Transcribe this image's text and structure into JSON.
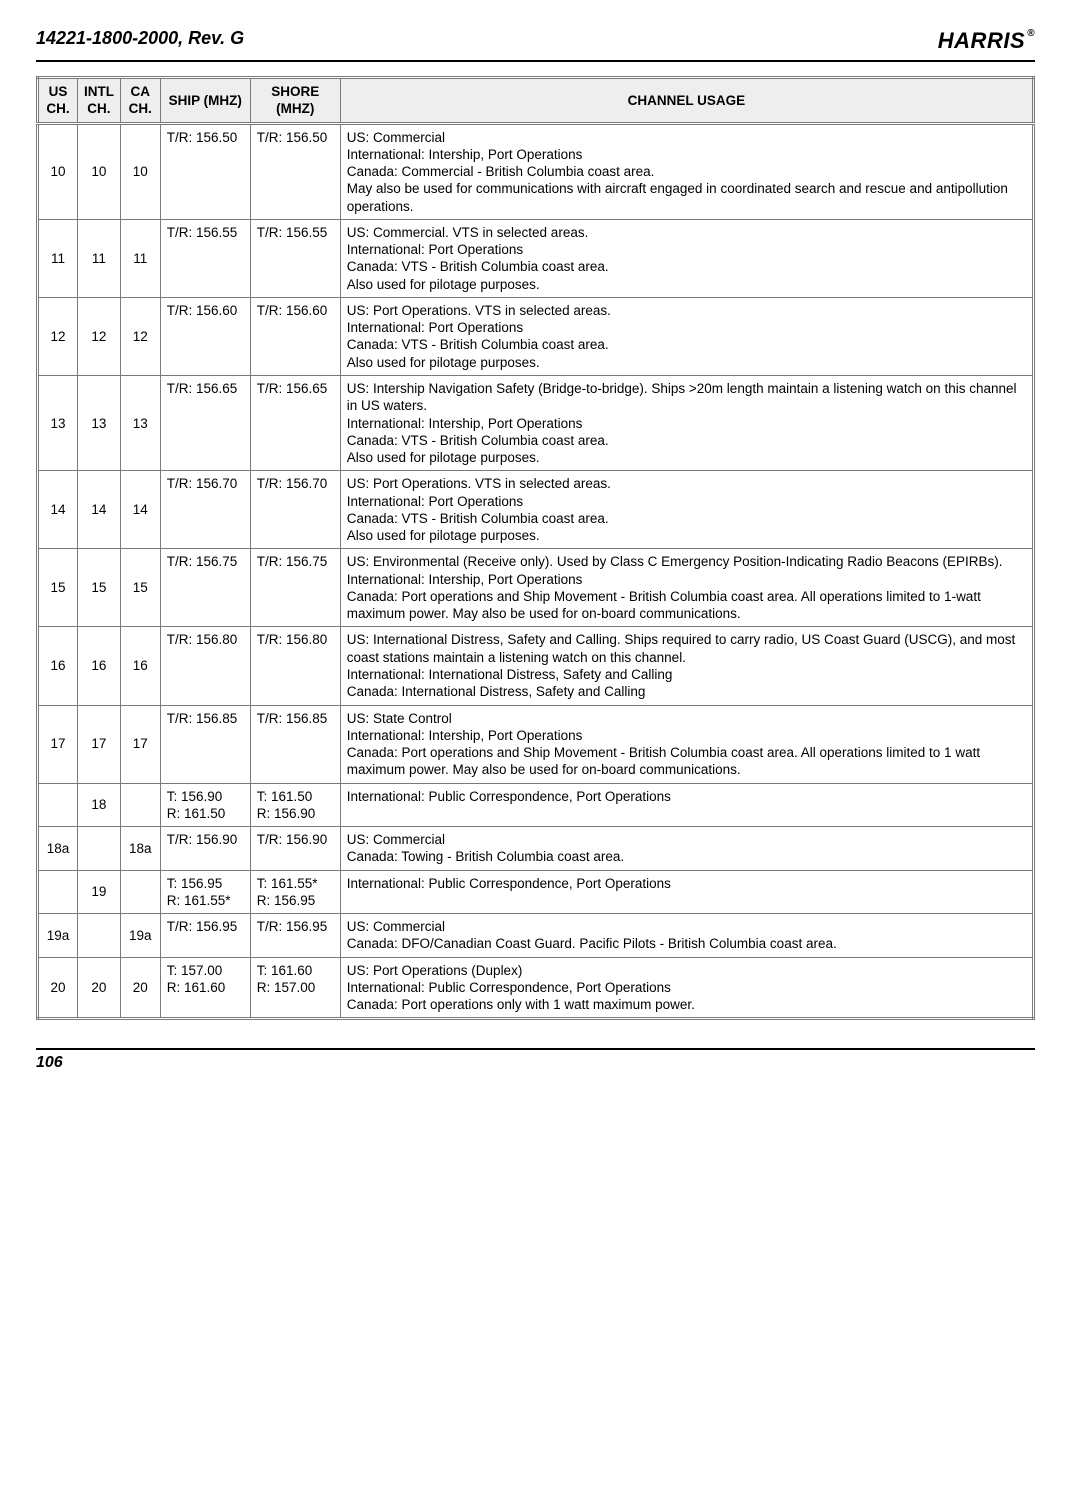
{
  "doc_id": "14221-1800-2000, Rev. G",
  "logo_text": "HARRIS",
  "page_number": "106",
  "table": {
    "headers": {
      "us": "US CH.",
      "intl": "INTL CH.",
      "ca": "CA CH.",
      "ship": "SHIP (MHZ)",
      "shore": "SHORE (MHZ)",
      "usage": "CHANNEL USAGE"
    },
    "rows": [
      {
        "us": "10",
        "intl": "10",
        "ca": "10",
        "ship": "T/R: 156.50",
        "shore": "T/R: 156.50",
        "usage": "US: Commercial\nInternational: Intership, Port Operations\nCanada: Commercial - British Columbia coast area.\nMay also be used for communications with aircraft engaged in coordinated search and rescue and antipollution operations."
      },
      {
        "us": "11",
        "intl": "11",
        "ca": "11",
        "ship": "T/R: 156.55",
        "shore": "T/R: 156.55",
        "usage": "US: Commercial. VTS in selected areas.\nInternational: Port Operations\nCanada: VTS - British Columbia coast area.\nAlso used for pilotage purposes."
      },
      {
        "us": "12",
        "intl": "12",
        "ca": "12",
        "ship": "T/R: 156.60",
        "shore": "T/R: 156.60",
        "usage": "US: Port Operations. VTS in selected areas.\nInternational: Port Operations\nCanada: VTS - British Columbia coast area.\nAlso used for pilotage purposes."
      },
      {
        "us": "13",
        "intl": "13",
        "ca": "13",
        "ship": "T/R: 156.65",
        "shore": "T/R: 156.65",
        "usage": "US: Intership Navigation Safety (Bridge-to-bridge). Ships >20m length maintain a listening watch on this channel in US waters.\nInternational: Intership, Port Operations\nCanada: VTS - British Columbia coast area.\nAlso used for pilotage purposes."
      },
      {
        "us": "14",
        "intl": "14",
        "ca": "14",
        "ship": "T/R: 156.70",
        "shore": "T/R: 156.70",
        "usage": "US: Port Operations. VTS in selected areas.\nInternational: Port Operations\nCanada: VTS - British Columbia coast area.\nAlso used for pilotage purposes."
      },
      {
        "us": "15",
        "intl": "15",
        "ca": "15",
        "ship": "T/R: 156.75",
        "shore": "T/R: 156.75",
        "usage": "US: Environmental (Receive only). Used by Class C Emergency Position-Indicating Radio Beacons (EPIRBs).\nInternational: Intership, Port Operations\nCanada: Port operations and Ship Movement - British Columbia coast area. All operations limited to 1-watt maximum power. May also be used for on-board communications."
      },
      {
        "us": "16",
        "intl": "16",
        "ca": "16",
        "ship": "T/R: 156.80",
        "shore": "T/R: 156.80",
        "usage": "US: International Distress, Safety and Calling. Ships required to carry radio, US Coast Guard (USCG), and most coast stations maintain a listening watch on this channel.\nInternational: International Distress, Safety and Calling\nCanada: International Distress, Safety and Calling"
      },
      {
        "us": "17",
        "intl": "17",
        "ca": "17",
        "ship": "T/R: 156.85",
        "shore": "T/R: 156.85",
        "usage": "US: State Control\nInternational: Intership, Port Operations\nCanada: Port operations and Ship Movement - British Columbia coast area. All operations limited to 1 watt maximum power. May also be used for on-board communications."
      },
      {
        "us": "",
        "intl": "18",
        "ca": "",
        "ship": "T: 156.90\nR: 161.50",
        "shore": "T: 161.50\nR: 156.90",
        "usage": "International: Public Correspondence, Port Operations"
      },
      {
        "us": "18a",
        "intl": "",
        "ca": "18a",
        "ship": "T/R: 156.90",
        "shore": "T/R: 156.90",
        "usage": "US: Commercial\nCanada: Towing - British Columbia coast area."
      },
      {
        "us": "",
        "intl": "19",
        "ca": "",
        "ship": "T: 156.95\nR: 161.55*",
        "shore": "T: 161.55*\nR: 156.95",
        "usage": "International: Public Correspondence, Port Operations"
      },
      {
        "us": "19a",
        "intl": "",
        "ca": "19a",
        "ship": "T/R: 156.95",
        "shore": "T/R: 156.95",
        "usage": "US: Commercial\nCanada: DFO/Canadian Coast Guard. Pacific Pilots - British Columbia coast area."
      },
      {
        "us": "20",
        "intl": "20",
        "ca": "20",
        "ship": "T: 157.00\nR: 161.60",
        "shore": "T: 161.60\nR: 157.00",
        "usage": "US: Port Operations (Duplex)\nInternational: Public Correspondence, Port Operations\nCanada: Port operations only with 1 watt maximum power."
      }
    ]
  }
}
